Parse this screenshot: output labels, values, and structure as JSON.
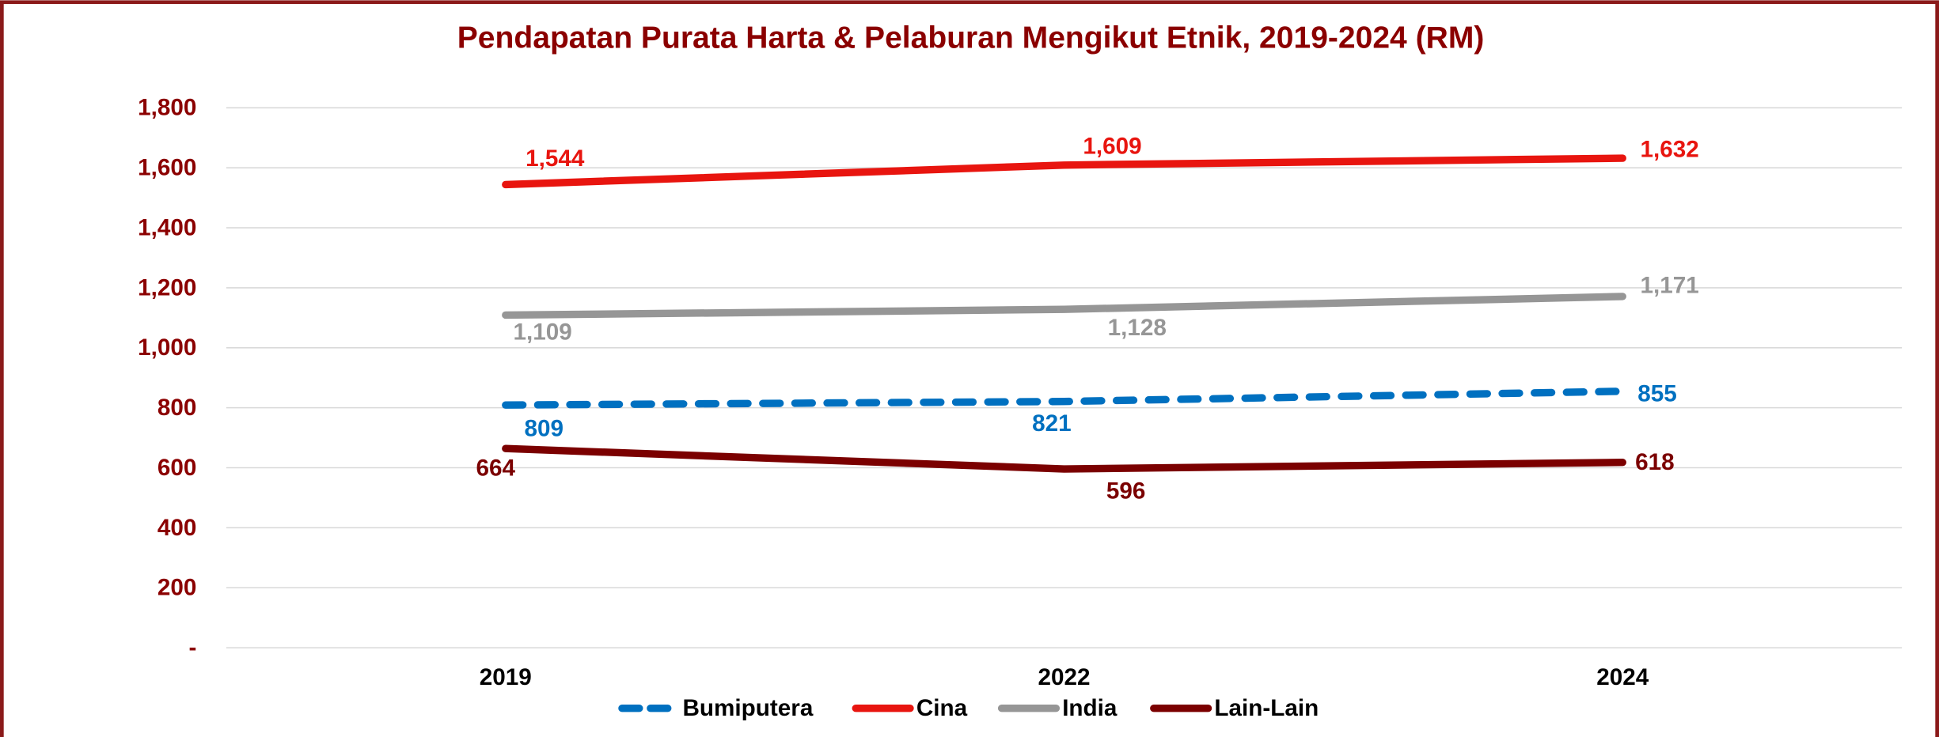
{
  "chart_data": {
    "type": "line",
    "title": "Pendapatan Purata Harta & Pelaburan Mengikut Etnik, 2019-2024 (RM)",
    "categories": [
      "2019",
      "2022",
      "2024"
    ],
    "series": [
      {
        "name": "Bumiputera",
        "color": "#0070c0",
        "dashed": true,
        "values": [
          809,
          821,
          855
        ],
        "value_labels": [
          "809",
          "821",
          "855"
        ]
      },
      {
        "name": "Cina",
        "color": "#e8150f",
        "values": [
          1544,
          1609,
          1632
        ],
        "value_labels": [
          "1,544",
          "1,609",
          "1,632"
        ]
      },
      {
        "name": "India",
        "color": "#969696",
        "values": [
          1109,
          1128,
          1171
        ],
        "value_labels": [
          "1,109",
          "1,128",
          "1,171"
        ]
      },
      {
        "name": "Lain-Lain",
        "color": "#7b0000",
        "values": [
          664,
          596,
          618
        ],
        "value_labels": [
          "664",
          "596",
          "618"
        ]
      }
    ],
    "ylim": [
      0,
      1800
    ],
    "yticks": [
      {
        "value": 0,
        "label": "-"
      },
      200,
      400,
      600,
      800,
      {
        "value": 1000,
        "label": "1,000"
      },
      {
        "value": 1200,
        "label": "1,200"
      },
      {
        "value": 1400,
        "label": "1,400"
      },
      {
        "value": 1600,
        "label": "1,600"
      },
      {
        "value": 1800,
        "label": "1,800"
      }
    ],
    "grid": true,
    "legend": "bottom"
  }
}
